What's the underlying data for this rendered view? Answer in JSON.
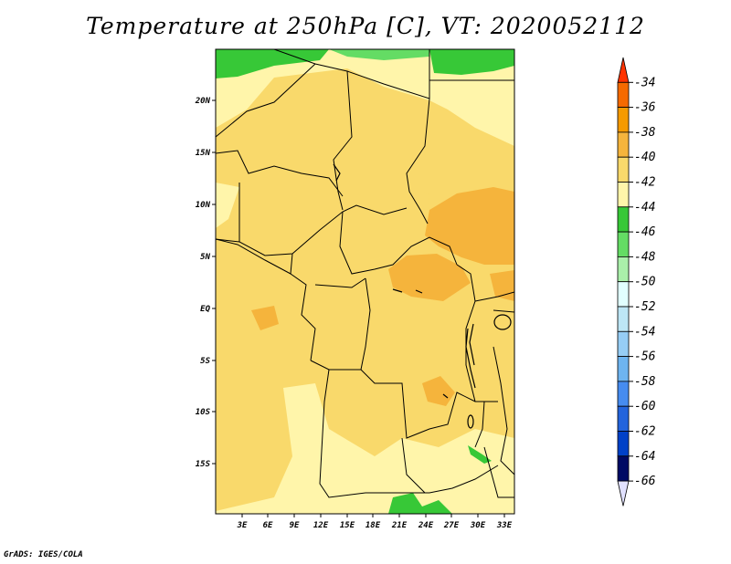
{
  "title": "Temperature at 250hPa [C], VT: 2020052112",
  "credit": "GrADS: IGES/COLA",
  "map": {
    "lat_labels": [
      "20N",
      "15N",
      "10N",
      "5N",
      "EQ",
      "5S",
      "10S",
      "15S"
    ],
    "lon_labels": [
      "3E",
      "6E",
      "9E",
      "12E",
      "15E",
      "18E",
      "21E",
      "24E",
      "27E",
      "30E",
      "33E"
    ]
  },
  "colorbar": {
    "labels": [
      "-34",
      "-36",
      "-38",
      "-40",
      "-42",
      "-44",
      "-46",
      "-48",
      "-50",
      "-52",
      "-54",
      "-56",
      "-58",
      "-60",
      "-62",
      "-64",
      "-66"
    ],
    "colors": [
      "#ff3300",
      "#f56a00",
      "#f59a00",
      "#f5b43c",
      "#f9d96b",
      "#fff5aa",
      "#37c837",
      "#64dc64",
      "#aaf0aa",
      "#e1ffff",
      "#bde6f5",
      "#96cdf5",
      "#6eb4f0",
      "#468cf0",
      "#2364dc",
      "#0041c8",
      "#000a64",
      "#e1e1ff"
    ]
  },
  "chart_data": {
    "type": "heatmap",
    "variable": "Temperature",
    "level": "250hPa",
    "units": "C",
    "valid_time": "2020052112",
    "lon_range": [
      0,
      34
    ],
    "lat_range": [
      -19,
      24
    ],
    "contour_levels": [
      -34,
      -36,
      -38,
      -40,
      -42,
      -44,
      -46,
      -48,
      -50,
      -52,
      -54,
      -56,
      -58,
      -60,
      -62,
      -64,
      -66
    ],
    "dominant_range": [
      -44,
      -38
    ]
  }
}
